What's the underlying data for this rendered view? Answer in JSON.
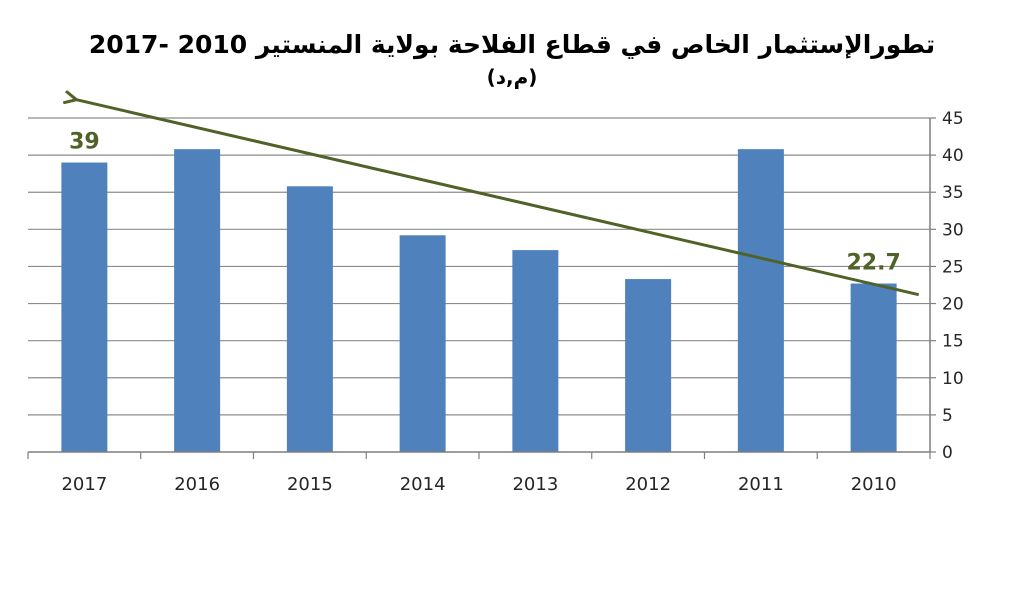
{
  "chart_data": {
    "type": "bar",
    "title": "تطورالإستثمار الخاص في قطاع الفلاحة بولاية المنستير 2010 -2017",
    "subtitle": "(م,د)",
    "categories": [
      "2017",
      "2016",
      "2015",
      "2014",
      "2013",
      "2012",
      "2011",
      "2010"
    ],
    "values": [
      39,
      40.8,
      35.8,
      29.2,
      27.2,
      23.3,
      40.8,
      22.7
    ],
    "data_labels": [
      {
        "category": "2017",
        "text": "39"
      },
      {
        "category": "2010",
        "text": "22.7"
      }
    ],
    "yticks": [
      0,
      5,
      10,
      15,
      20,
      25,
      30,
      35,
      40,
      45
    ],
    "ylim": [
      0,
      45
    ],
    "y_axis_side": "right",
    "grid": true,
    "legend": "none",
    "trend_arrow": {
      "from": {
        "category": "2010",
        "value": 21.2
      },
      "to": {
        "category": "2017",
        "value": 47.5
      },
      "color": "#4F6228"
    },
    "colors": {
      "bar": "#4F81BD",
      "trend": "#4F6228",
      "grid": "#8C8C8C",
      "axis": "#7F7F7F",
      "label": "#4F6228"
    }
  }
}
